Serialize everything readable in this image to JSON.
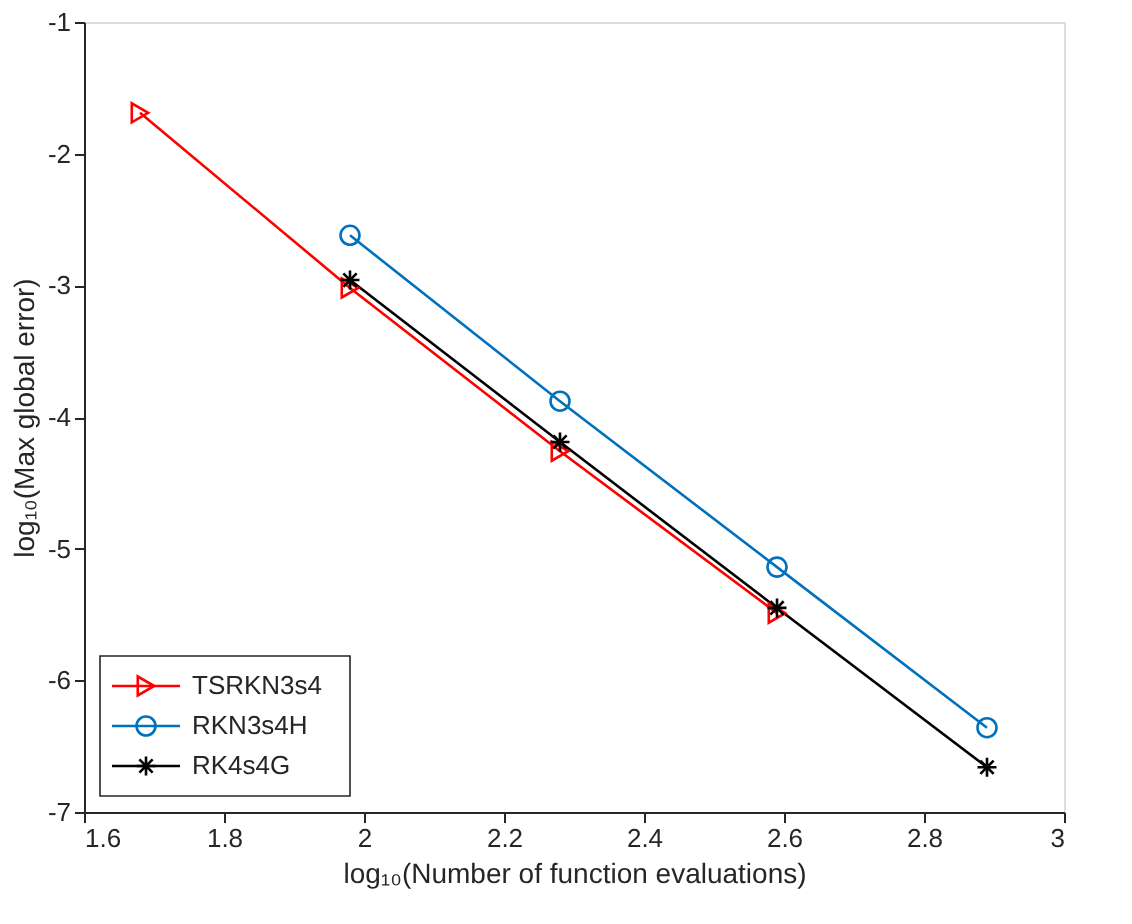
{
  "chart_data": {
    "type": "line",
    "xlabel": "log₁₀(Number of function evaluations)",
    "ylabel": "log₁₀(Max global error)",
    "xlim": [
      1.6,
      3
    ],
    "xticks": [
      1.6,
      1.8,
      2,
      2.2,
      2.4,
      2.6,
      2.8,
      3
    ],
    "ylim": [
      -7,
      -1
    ],
    "yticks": [
      -7,
      -6,
      -5,
      -4,
      -3,
      -2,
      -1
    ],
    "grid": false,
    "legend": "bottom left",
    "line_style": "solid",
    "series": [
      {
        "name": "TSRKN3s4",
        "color": "#ff0000",
        "marker": "triangle",
        "x": [
          1.68,
          1.98,
          2.28,
          2.59
        ],
        "values": [
          -1.69,
          -3.02,
          -4.26,
          -5.49
        ]
      },
      {
        "name": "RKN3s4H",
        "color": "#0072bd",
        "marker": "circle",
        "x": [
          1.98,
          2.28,
          2.59,
          2.89
        ],
        "values": [
          -2.62,
          -3.88,
          -5.14,
          -6.36
        ]
      },
      {
        "name": "RK4s4G",
        "color": "#000000",
        "marker": "cross",
        "x": [
          1.98,
          2.28,
          2.59,
          2.89
        ],
        "values": [
          -2.96,
          -4.19,
          -5.45,
          -6.66
        ]
      }
    ]
  }
}
